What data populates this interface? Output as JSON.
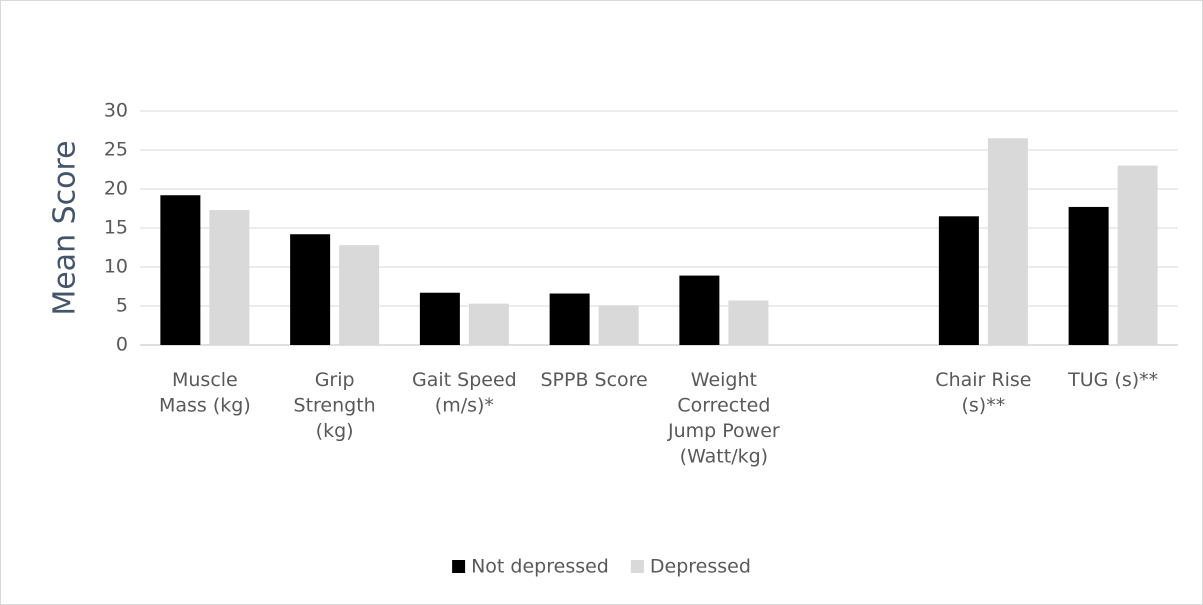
{
  "chart_data": {
    "type": "bar",
    "y_label": "Mean Score",
    "categories": [
      "Muscle Mass (kg)",
      "Grip Strength (kg)",
      "Gait Speed (m/s)*",
      "SPPB Score",
      "Weight Corrected Jump Power (Watt/kg)",
      null,
      "Chair Rise (s)**",
      "TUG (s)**"
    ],
    "series": [
      {
        "name": "Not depressed",
        "color": "#000000",
        "values": [
          19.2,
          14.2,
          6.7,
          6.6,
          8.9,
          null,
          16.5,
          17.7
        ]
      },
      {
        "name": "Depressed",
        "color": "#d9d9d9",
        "values": [
          17.3,
          12.8,
          5.3,
          5.1,
          5.7,
          null,
          26.5,
          23.0
        ]
      }
    ],
    "ylim": [
      0,
      30
    ],
    "yticks": [
      0,
      5,
      10,
      15,
      20,
      25,
      30
    ],
    "grid": true,
    "legend": "bottom"
  }
}
